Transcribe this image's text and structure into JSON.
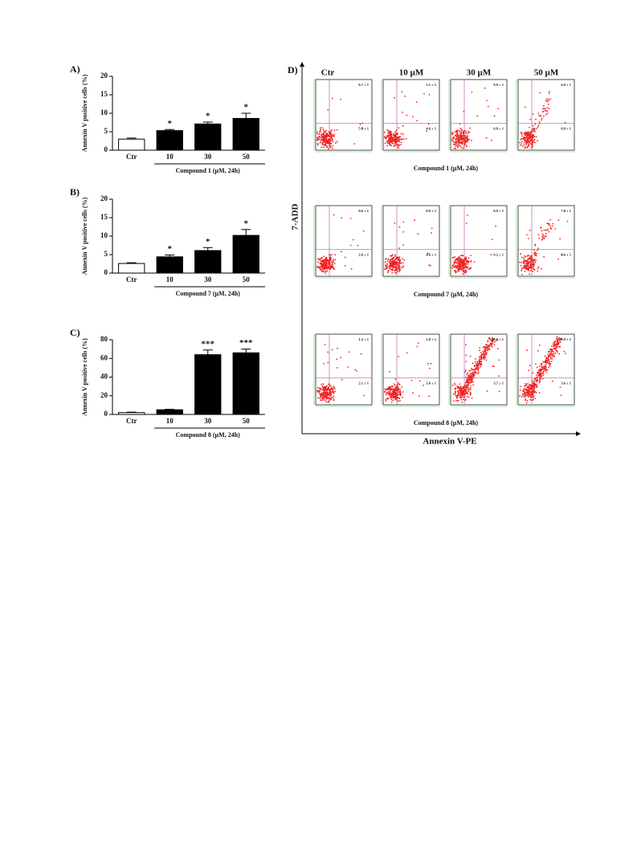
{
  "chart_data": [
    {
      "type": "bar",
      "label": "A)",
      "ylabel": "Annexin V positive cells (%)",
      "xlabel": "Compound 1 (µM, 24h)",
      "categories": [
        "Ctr",
        "10",
        "30",
        "50"
      ],
      "values": [
        3,
        5.3,
        7.1,
        8.6
      ],
      "errors": [
        0.3,
        0.3,
        0.5,
        1.4
      ],
      "colors": [
        "#ffffff",
        "#000000",
        "#000000",
        "#000000"
      ],
      "annotations": [
        null,
        "*",
        "*",
        "*"
      ],
      "ylim": [
        0,
        20
      ],
      "yticks": [
        0,
        5,
        10,
        15,
        20
      ]
    },
    {
      "type": "bar",
      "label": "B)",
      "ylabel": "Annexin V positive cells (%)",
      "xlabel": "Compound 7 (µM, 24h)",
      "categories": [
        "Ctr",
        "10",
        "30",
        "50"
      ],
      "values": [
        2.6,
        4.4,
        6.1,
        10.2
      ],
      "errors": [
        0.2,
        0.5,
        0.8,
        1.6
      ],
      "colors": [
        "#ffffff",
        "#000000",
        "#000000",
        "#000000"
      ],
      "annotations": [
        null,
        "*",
        "*",
        "*"
      ],
      "ylim": [
        0,
        20
      ],
      "yticks": [
        0,
        5,
        10,
        15,
        20
      ]
    },
    {
      "type": "bar",
      "label": "C)",
      "ylabel": "Annexin V positive cells (%)",
      "xlabel": "Compound 8 (µM, 24h)",
      "categories": [
        "Ctr",
        "10",
        "30",
        "50"
      ],
      "values": [
        2,
        5,
        64,
        66
      ],
      "errors": [
        0.5,
        0.5,
        5,
        4
      ],
      "colors": [
        "#ffffff",
        "#000000",
        "#000000",
        "#000000"
      ],
      "annotations": [
        null,
        null,
        "***",
        "***"
      ],
      "ylim": [
        0,
        80
      ],
      "yticks": [
        0,
        20,
        40,
        60,
        80
      ]
    }
  ],
  "panel_d": {
    "label": "D)",
    "columns": [
      "Ctr",
      "10 µM",
      "30 µM",
      "50 µM"
    ],
    "x_label": "Annexin V-PE",
    "y_label": "7-ADD",
    "rows": [
      {
        "caption": "Compound 1 (µM, 24h)",
        "quadrants": [
          [
            "0.7 ± 1",
            "5.9 ± 1"
          ],
          [
            "1.1 ± 1",
            "4.6 ± 1"
          ],
          [
            "0.9 ± 1",
            "6.8 ± 1"
          ],
          [
            "6.9 ± 1",
            "8.9 ± 1"
          ]
        ]
      },
      {
        "caption": "Compound 7 (µM, 24h)",
        "quadrants": [
          [
            "0.6 ± 1",
            "2.6 ± 1"
          ],
          [
            "0.8 ± 1",
            "4.6 ± 1"
          ],
          [
            "0.9 ± 1",
            "6.2 ± 1"
          ],
          [
            "7.8 ± 1",
            "9.6 ± 1"
          ]
        ]
      },
      {
        "caption": "Compound 8 (µM, 24h)",
        "quadrants": [
          [
            "1.2 ± 1",
            "2.1 ± 1"
          ],
          [
            "1.8 ± 1",
            "3.6 ± 1"
          ],
          [
            "60.8 ± 1",
            "3.7 ± 1"
          ],
          [
            "71.9 ± 1",
            "3.6 ± 1"
          ]
        ]
      }
    ]
  }
}
